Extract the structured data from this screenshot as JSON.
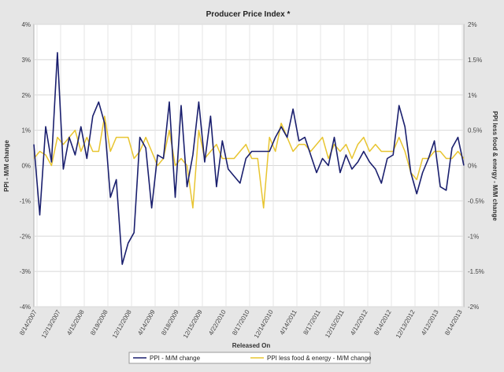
{
  "chart_data": {
    "type": "line",
    "title": "Producer Price Index *",
    "xlabel": "Released On",
    "ylabel_left": "PPI - M/M change",
    "ylabel_right": "PPI less food & energy - M/M change",
    "left_axis": {
      "ylim": [
        -4,
        4
      ],
      "ticks": [
        "4%",
        "3%",
        "2%",
        "1%",
        "0%",
        "-1%",
        "-2%",
        "-3%",
        "-4%"
      ]
    },
    "right_axis": {
      "ylim": [
        -2,
        2
      ],
      "ticks": [
        "2%",
        "1.5%",
        "1%",
        "0.5%",
        "0%",
        "-0.5%",
        "-1%",
        "-1.5%",
        "-2%"
      ]
    },
    "grid": true,
    "legend_position": "bottom-center",
    "x_tick_labels": [
      "8/14/2007",
      "12/13/2007",
      "4/15/2008",
      "8/19/2008",
      "12/12/2008",
      "4/14/2009",
      "8/18/2009",
      "12/15/2009",
      "4/22/2010",
      "8/17/2010",
      "12/14/2010",
      "4/14/2011",
      "8/17/2011",
      "12/15/2011",
      "4/12/2012",
      "8/14/2012",
      "12/13/2012",
      "4/12/2013",
      "8/14/2013"
    ],
    "series": [
      {
        "name": "PPI - M/M change",
        "axis": "left",
        "color": "#1a1f6e",
        "values": [
          0.6,
          -1.4,
          1.1,
          0.1,
          3.2,
          -0.1,
          0.8,
          0.3,
          1.1,
          0.2,
          1.4,
          1.8,
          1.2,
          -0.9,
          -0.4,
          -2.8,
          -2.2,
          -1.9,
          0.8,
          0.5,
          -1.2,
          0.3,
          0.2,
          1.8,
          -0.9,
          1.7,
          -0.6,
          0.3,
          1.8,
          0.1,
          1.4,
          -0.6,
          0.7,
          -0.1,
          -0.3,
          -0.5,
          0.2,
          0.4,
          0.4,
          0.4,
          0.4,
          0.8,
          1.1,
          0.8,
          1.6,
          0.7,
          0.8,
          0.3,
          -0.2,
          0.2,
          0.0,
          0.8,
          -0.2,
          0.3,
          -0.1,
          0.1,
          0.4,
          0.1,
          -0.1,
          -0.5,
          0.2,
          0.3,
          1.7,
          1.1,
          -0.2,
          -0.8,
          -0.2,
          0.2,
          0.7,
          -0.6,
          -0.7,
          0.5,
          0.8,
          0.0
        ]
      },
      {
        "name": "PPI less food & energy - M/M change",
        "axis": "right",
        "color": "#e8c531",
        "values": [
          0.1,
          0.2,
          0.15,
          0.0,
          0.4,
          0.3,
          0.4,
          0.5,
          0.2,
          0.4,
          0.2,
          0.2,
          0.7,
          0.2,
          0.4,
          0.4,
          0.4,
          0.1,
          0.2,
          0.4,
          0.2,
          0.0,
          0.1,
          0.5,
          0.0,
          0.1,
          0.0,
          -0.6,
          0.5,
          0.1,
          0.2,
          0.3,
          0.1,
          0.1,
          0.1,
          0.2,
          0.3,
          0.1,
          0.1,
          -0.6,
          0.4,
          0.2,
          0.6,
          0.4,
          0.2,
          0.3,
          0.3,
          0.2,
          0.3,
          0.4,
          0.1,
          0.3,
          0.2,
          0.3,
          0.1,
          0.3,
          0.4,
          0.2,
          0.3,
          0.2,
          0.2,
          0.2,
          0.4,
          0.2,
          -0.1,
          -0.2,
          0.1,
          0.1,
          0.2,
          0.2,
          0.1,
          0.1,
          0.2,
          0.1
        ]
      }
    ]
  }
}
